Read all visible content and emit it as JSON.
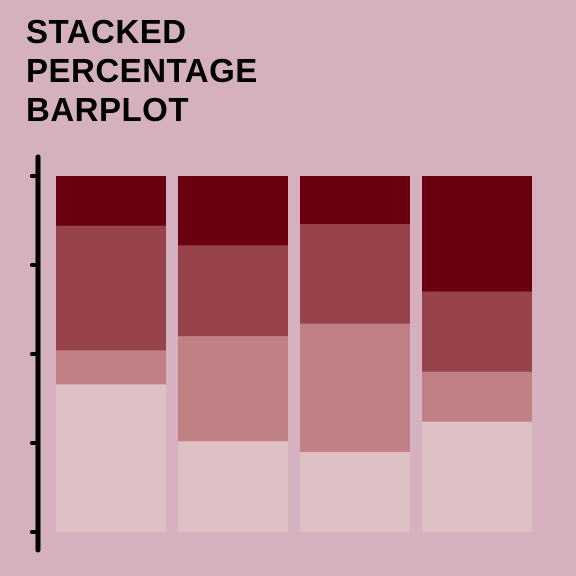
{
  "title_lines": [
    "STACKED",
    "PERCENTAGE",
    "BARPLOT"
  ],
  "colors": {
    "background": "#d5b1bf",
    "axis": "#000000",
    "segments": [
      "#dcc0c4",
      "#c08084",
      "#98434c",
      "#6a000f"
    ]
  },
  "chart_data": {
    "type": "bar",
    "stacked": true,
    "percent": true,
    "title": "STACKED PERCENTAGE BARPLOT",
    "xlabel": "",
    "ylabel": "",
    "ylim": [
      0,
      100
    ],
    "y_ticks": [
      0,
      25,
      50,
      75,
      100
    ],
    "y_tick_labels_shown": false,
    "categories": [
      "",
      "",
      "",
      ""
    ],
    "series": [
      {
        "values": [
          41.5,
          25.5,
          22.5,
          31.0
        ]
      },
      {
        "values": [
          9.5,
          29.5,
          36.0,
          14.0
        ]
      },
      {
        "values": [
          35.0,
          25.5,
          28.0,
          22.5
        ]
      },
      {
        "values": [
          14.0,
          19.5,
          13.5,
          32.5
        ]
      }
    ],
    "grid": false,
    "legend": "none"
  }
}
